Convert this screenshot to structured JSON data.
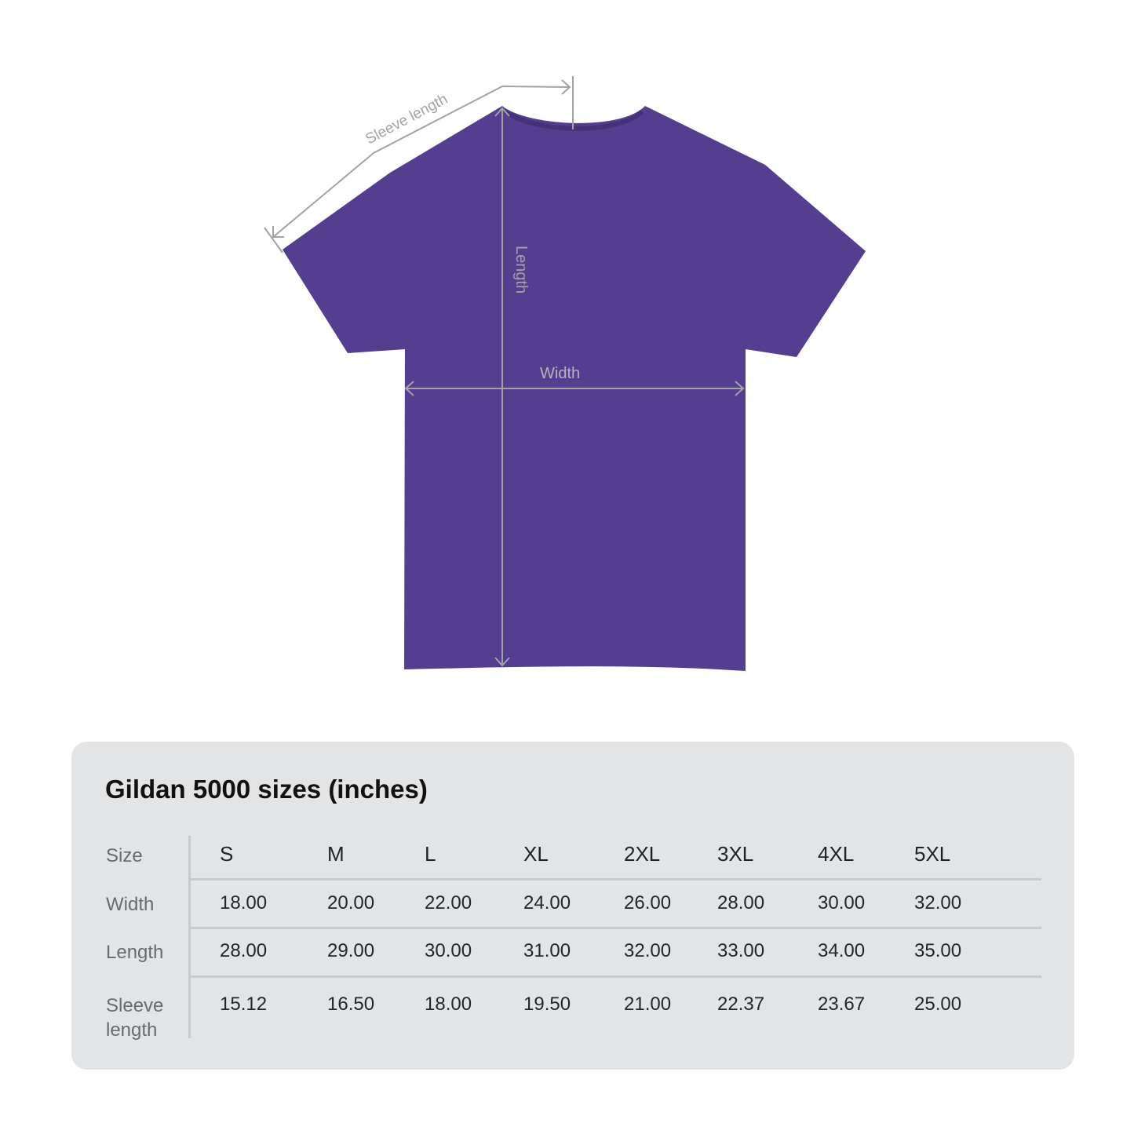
{
  "diagram": {
    "shirt_color": "#553d8f",
    "measure_line_color": "#a3a3a6",
    "labels": {
      "sleeve": "Sleeve length",
      "length": "Length",
      "width": "Width"
    }
  },
  "table": {
    "title": "Gildan 5000 sizes (inches)",
    "header_label": "Size",
    "sizes": [
      "S",
      "M",
      "L",
      "XL",
      "2XL",
      "3XL",
      "4XL",
      "5XL"
    ],
    "rows": [
      {
        "label": "Width",
        "values": [
          "18.00",
          "20.00",
          "22.00",
          "24.00",
          "26.00",
          "28.00",
          "30.00",
          "32.00"
        ]
      },
      {
        "label": "Length",
        "values": [
          "28.00",
          "29.00",
          "30.00",
          "31.00",
          "32.00",
          "33.00",
          "34.00",
          "35.00"
        ]
      },
      {
        "label_line1": "Sleeve",
        "label_line2": "length",
        "values": [
          "15.12",
          "16.50",
          "18.00",
          "19.50",
          "21.00",
          "22.37",
          "23.67",
          "25.00"
        ]
      }
    ]
  }
}
